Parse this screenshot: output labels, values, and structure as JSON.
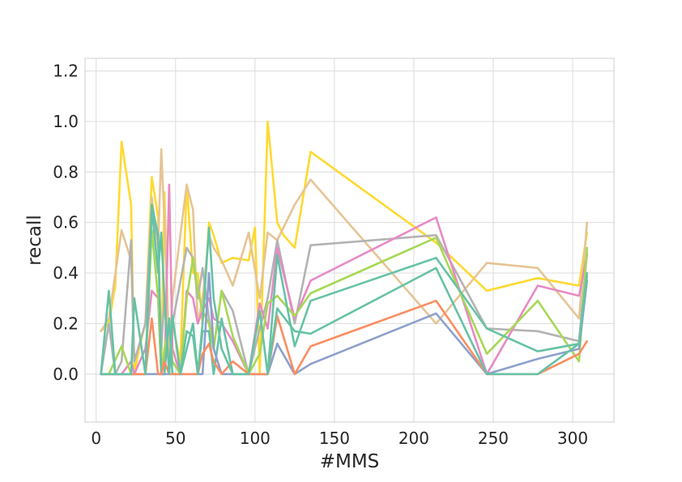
{
  "chart_data": {
    "type": "line",
    "title": "",
    "xlabel": "#MMS",
    "ylabel": "recall",
    "xlim": [
      -7,
      326
    ],
    "ylim": [
      -0.19,
      1.25
    ],
    "xticks": [
      0,
      50,
      100,
      150,
      200,
      250,
      300
    ],
    "yticks": [
      0.0,
      0.2,
      0.4,
      0.6,
      0.8,
      1.0,
      1.2
    ],
    "grid": true,
    "legend": "none",
    "series": [
      {
        "color": "#ffd92f",
        "points": [
          [
            3,
            0.17
          ],
          [
            8,
            0.2
          ],
          [
            12,
            0.35
          ],
          [
            16,
            0.92
          ],
          [
            22,
            0.67
          ],
          [
            24,
            0.0
          ],
          [
            27,
            0.1
          ],
          [
            31,
            0.2
          ],
          [
            35,
            0.78
          ],
          [
            39,
            0.62
          ],
          [
            41,
            0.0
          ],
          [
            43,
            0.72
          ],
          [
            46,
            0.05
          ],
          [
            48,
            0.2
          ],
          [
            53,
            0.05
          ],
          [
            57,
            0.75
          ],
          [
            61,
            0.4
          ],
          [
            64,
            0.4
          ],
          [
            67,
            0.2
          ],
          [
            71,
            0.6
          ],
          [
            74,
            0.55
          ],
          [
            79,
            0.44
          ],
          [
            86,
            0.46
          ],
          [
            96,
            0.45
          ],
          [
            100,
            0.58
          ],
          [
            103,
            0.0
          ],
          [
            108,
            1.0
          ],
          [
            114,
            0.6
          ],
          [
            118,
            0.55
          ],
          [
            125,
            0.5
          ],
          [
            135,
            0.88
          ],
          [
            214,
            0.52
          ],
          [
            246,
            0.33
          ],
          [
            278,
            0.38
          ],
          [
            304,
            0.35
          ],
          [
            309,
            0.56
          ]
        ]
      },
      {
        "color": "#e5c494",
        "points": [
          [
            3,
            0.17
          ],
          [
            8,
            0.22
          ],
          [
            16,
            0.57
          ],
          [
            22,
            0.45
          ],
          [
            24,
            0.05
          ],
          [
            31,
            0.2
          ],
          [
            35,
            0.7
          ],
          [
            39,
            0.5
          ],
          [
            41,
            0.89
          ],
          [
            43,
            0.6
          ],
          [
            46,
            0.06
          ],
          [
            48,
            0.3
          ],
          [
            57,
            0.75
          ],
          [
            61,
            0.65
          ],
          [
            64,
            0.2
          ],
          [
            67,
            0.3
          ],
          [
            71,
            0.55
          ],
          [
            74,
            0.5
          ],
          [
            79,
            0.45
          ],
          [
            86,
            0.35
          ],
          [
            96,
            0.56
          ],
          [
            103,
            0.3
          ],
          [
            108,
            0.56
          ],
          [
            114,
            0.53
          ],
          [
            125,
            0.67
          ],
          [
            135,
            0.77
          ],
          [
            214,
            0.2
          ],
          [
            246,
            0.44
          ],
          [
            278,
            0.42
          ],
          [
            304,
            0.22
          ],
          [
            309,
            0.6
          ]
        ]
      },
      {
        "color": "#b3b3b3",
        "points": [
          [
            3,
            0.0
          ],
          [
            8,
            0.2
          ],
          [
            12,
            0.0
          ],
          [
            16,
            0.05
          ],
          [
            22,
            0.53
          ],
          [
            24,
            0.05
          ],
          [
            31,
            0.2
          ],
          [
            35,
            0.65
          ],
          [
            39,
            0.53
          ],
          [
            41,
            0.1
          ],
          [
            43,
            0.3
          ],
          [
            46,
            0.0
          ],
          [
            48,
            0.2
          ],
          [
            57,
            0.5
          ],
          [
            61,
            0.46
          ],
          [
            64,
            0.3
          ],
          [
            67,
            0.42
          ],
          [
            71,
            0.22
          ],
          [
            74,
            0.1
          ],
          [
            79,
            0.33
          ],
          [
            86,
            0.25
          ],
          [
            96,
            0.0
          ],
          [
            103,
            0.18
          ],
          [
            108,
            0.3
          ],
          [
            114,
            0.53
          ],
          [
            125,
            0.2
          ],
          [
            135,
            0.51
          ],
          [
            214,
            0.55
          ],
          [
            246,
            0.18
          ],
          [
            278,
            0.17
          ],
          [
            304,
            0.13
          ],
          [
            309,
            0.48
          ]
        ]
      },
      {
        "color": "#e78ac3",
        "points": [
          [
            3,
            0.0
          ],
          [
            8,
            0.0
          ],
          [
            16,
            0.0
          ],
          [
            22,
            0.05
          ],
          [
            24,
            0.0
          ],
          [
            31,
            0.1
          ],
          [
            35,
            0.33
          ],
          [
            39,
            0.3
          ],
          [
            41,
            0.0
          ],
          [
            43,
            0.0
          ],
          [
            46,
            0.75
          ],
          [
            48,
            0.1
          ],
          [
            53,
            0.0
          ],
          [
            57,
            0.33
          ],
          [
            61,
            0.3
          ],
          [
            64,
            0.2
          ],
          [
            67,
            0.25
          ],
          [
            71,
            0.3
          ],
          [
            74,
            0.22
          ],
          [
            79,
            0.2
          ],
          [
            86,
            0.13
          ],
          [
            96,
            0.0
          ],
          [
            103,
            0.28
          ],
          [
            108,
            0.18
          ],
          [
            114,
            0.5
          ],
          [
            125,
            0.22
          ],
          [
            135,
            0.37
          ],
          [
            214,
            0.62
          ],
          [
            246,
            0.0
          ],
          [
            278,
            0.35
          ],
          [
            304,
            0.31
          ],
          [
            309,
            0.47
          ]
        ]
      },
      {
        "color": "#a6d854",
        "points": [
          [
            3,
            0.0
          ],
          [
            8,
            0.0
          ],
          [
            16,
            0.11
          ],
          [
            22,
            0.0
          ],
          [
            24,
            0.0
          ],
          [
            31,
            0.0
          ],
          [
            35,
            0.57
          ],
          [
            39,
            0.3
          ],
          [
            41,
            0.0
          ],
          [
            43,
            0.1
          ],
          [
            46,
            0.2
          ],
          [
            48,
            0.05
          ],
          [
            53,
            0.0
          ],
          [
            57,
            0.3
          ],
          [
            61,
            0.46
          ],
          [
            64,
            0.33
          ],
          [
            67,
            0.25
          ],
          [
            71,
            0.2
          ],
          [
            74,
            0.1
          ],
          [
            79,
            0.33
          ],
          [
            86,
            0.15
          ],
          [
            96,
            0.0
          ],
          [
            103,
            0.08
          ],
          [
            108,
            0.28
          ],
          [
            114,
            0.31
          ],
          [
            125,
            0.23
          ],
          [
            135,
            0.32
          ],
          [
            214,
            0.54
          ],
          [
            246,
            0.08
          ],
          [
            278,
            0.29
          ],
          [
            304,
            0.05
          ],
          [
            309,
            0.5
          ]
        ]
      },
      {
        "color": "#66c2a5",
        "points": [
          [
            3,
            0.0
          ],
          [
            8,
            0.33
          ],
          [
            12,
            0.0
          ],
          [
            16,
            0.0
          ],
          [
            22,
            0.0
          ],
          [
            24,
            0.0
          ],
          [
            31,
            0.0
          ],
          [
            35,
            0.67
          ],
          [
            39,
            0.55
          ],
          [
            41,
            0.0
          ],
          [
            43,
            0.0
          ],
          [
            46,
            0.22
          ],
          [
            48,
            0.0
          ],
          [
            53,
            0.0
          ],
          [
            57,
            0.17
          ],
          [
            61,
            0.15
          ],
          [
            64,
            0.0
          ],
          [
            67,
            0.17
          ],
          [
            71,
            0.17
          ],
          [
            74,
            0.0
          ],
          [
            79,
            0.22
          ],
          [
            86,
            0.0
          ],
          [
            96,
            0.0
          ],
          [
            103,
            0.0
          ],
          [
            108,
            0.0
          ],
          [
            114,
            0.47
          ],
          [
            125,
            0.11
          ],
          [
            135,
            0.29
          ],
          [
            214,
            0.46
          ],
          [
            246,
            0.18
          ],
          [
            278,
            0.09
          ],
          [
            304,
            0.12
          ],
          [
            309,
            0.4
          ]
        ]
      },
      {
        "color": "#8da0cb",
        "points": [
          [
            3,
            0.0
          ],
          [
            8,
            0.0
          ],
          [
            16,
            0.0
          ],
          [
            22,
            0.0
          ],
          [
            24,
            0.0
          ],
          [
            31,
            0.0
          ],
          [
            35,
            0.0
          ],
          [
            39,
            0.0
          ],
          [
            41,
            0.0
          ],
          [
            43,
            0.0
          ],
          [
            46,
            0.0
          ],
          [
            53,
            0.0
          ],
          [
            57,
            0.0
          ],
          [
            61,
            0.0
          ],
          [
            64,
            0.0
          ],
          [
            67,
            0.0
          ],
          [
            71,
            0.4
          ],
          [
            74,
            0.1
          ],
          [
            79,
            0.0
          ],
          [
            86,
            0.0
          ],
          [
            96,
            0.0
          ],
          [
            103,
            0.0
          ],
          [
            108,
            0.0
          ],
          [
            114,
            0.12
          ],
          [
            125,
            0.0
          ],
          [
            135,
            0.04
          ],
          [
            214,
            0.24
          ],
          [
            246,
            0.0
          ],
          [
            278,
            0.06
          ],
          [
            304,
            0.1
          ],
          [
            309,
            0.37
          ]
        ]
      },
      {
        "color": "#fc8d62",
        "points": [
          [
            3,
            0.0
          ],
          [
            8,
            0.0
          ],
          [
            16,
            0.0
          ],
          [
            22,
            0.0
          ],
          [
            24,
            0.0
          ],
          [
            31,
            0.0
          ],
          [
            35,
            0.22
          ],
          [
            39,
            0.0
          ],
          [
            41,
            0.0
          ],
          [
            43,
            0.05
          ],
          [
            46,
            0.0
          ],
          [
            53,
            0.0
          ],
          [
            57,
            0.0
          ],
          [
            61,
            0.0
          ],
          [
            64,
            0.0
          ],
          [
            67,
            0.08
          ],
          [
            71,
            0.12
          ],
          [
            74,
            0.05
          ],
          [
            79,
            0.0
          ],
          [
            86,
            0.05
          ],
          [
            96,
            0.0
          ],
          [
            103,
            0.0
          ],
          [
            108,
            0.0
          ],
          [
            114,
            0.23
          ],
          [
            125,
            0.0
          ],
          [
            135,
            0.11
          ],
          [
            214,
            0.29
          ],
          [
            246,
            0.0
          ],
          [
            278,
            0.0
          ],
          [
            304,
            0.08
          ],
          [
            309,
            0.13
          ]
        ]
      },
      {
        "color": "#66c2a5",
        "points": [
          [
            3,
            0.0
          ],
          [
            8,
            0.0
          ],
          [
            16,
            0.0
          ],
          [
            22,
            0.0
          ],
          [
            24,
            0.3
          ],
          [
            31,
            0.0
          ],
          [
            35,
            0.66
          ],
          [
            39,
            0.4
          ],
          [
            41,
            0.56
          ],
          [
            43,
            0.3
          ],
          [
            46,
            0.0
          ],
          [
            48,
            0.23
          ],
          [
            53,
            0.0
          ],
          [
            57,
            0.1
          ],
          [
            61,
            0.2
          ],
          [
            64,
            0.0
          ],
          [
            67,
            0.2
          ],
          [
            71,
            0.58
          ],
          [
            74,
            0.3
          ],
          [
            79,
            0.1
          ],
          [
            86,
            0.0
          ],
          [
            96,
            0.0
          ],
          [
            103,
            0.25
          ],
          [
            108,
            0.0
          ],
          [
            114,
            0.26
          ],
          [
            125,
            0.17
          ],
          [
            135,
            0.16
          ],
          [
            214,
            0.42
          ],
          [
            246,
            0.0
          ],
          [
            278,
            0.0
          ],
          [
            304,
            0.12
          ],
          [
            309,
            0.39
          ]
        ]
      }
    ]
  }
}
